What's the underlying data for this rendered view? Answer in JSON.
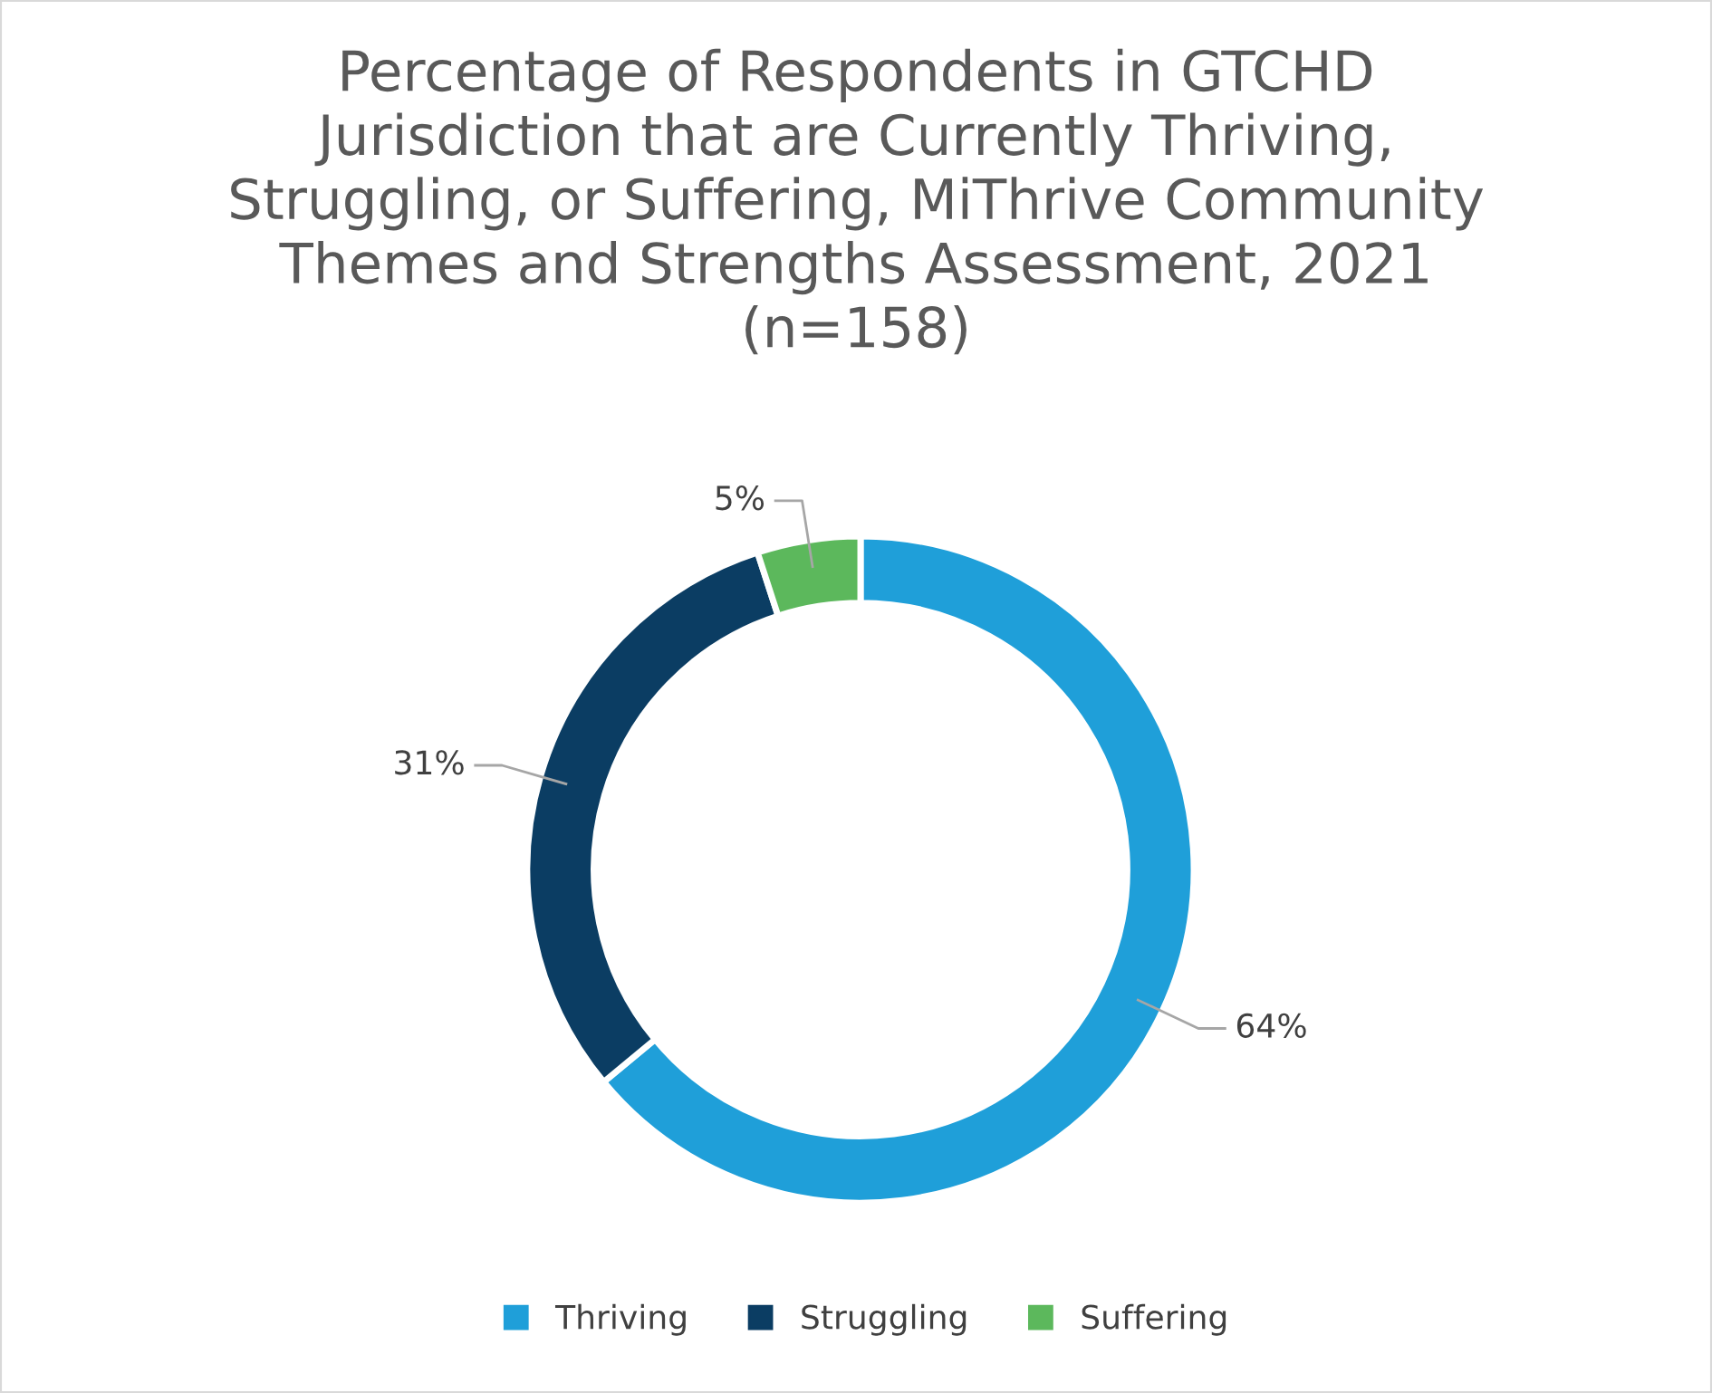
{
  "chart_data": {
    "type": "donut",
    "title": "Percentage of Respondents in GTCHD\nJurisdiction that are Currently Thriving,\nStruggling, or Suffering, MiThrive Community\nThemes and Strengths Assessment, 2021\n(n=158)",
    "categories": [
      "Thriving",
      "Struggling",
      "Suffering"
    ],
    "values": [
      64,
      31,
      5
    ],
    "colors": [
      "#1f9fd9",
      "#0b3d63",
      "#5cb85c"
    ],
    "value_labels": [
      "64%",
      "31%",
      "5%"
    ],
    "legend": "bottom"
  }
}
